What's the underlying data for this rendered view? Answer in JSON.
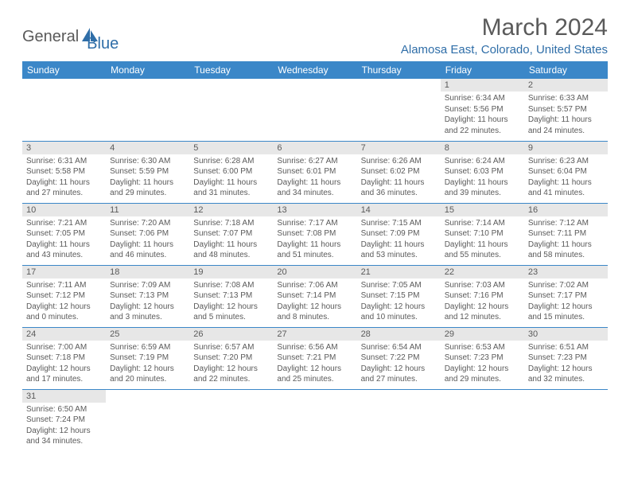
{
  "logo": {
    "text1": "General",
    "text2": "Blue"
  },
  "title": "March 2024",
  "location": "Alamosa East, Colorado, United States",
  "colors": {
    "header_bg": "#3b87c8",
    "header_text": "#ffffff",
    "daynum_bg": "#e7e7e7",
    "body_text": "#5a5a5a",
    "accent": "#2f6ea8",
    "row_border": "#3b87c8",
    "page_bg": "#ffffff"
  },
  "weekdays": [
    "Sunday",
    "Monday",
    "Tuesday",
    "Wednesday",
    "Thursday",
    "Friday",
    "Saturday"
  ],
  "weeks": [
    [
      null,
      null,
      null,
      null,
      null,
      {
        "num": "1",
        "sunrise": "Sunrise: 6:34 AM",
        "sunset": "Sunset: 5:56 PM",
        "daylight": "Daylight: 11 hours and 22 minutes."
      },
      {
        "num": "2",
        "sunrise": "Sunrise: 6:33 AM",
        "sunset": "Sunset: 5:57 PM",
        "daylight": "Daylight: 11 hours and 24 minutes."
      }
    ],
    [
      {
        "num": "3",
        "sunrise": "Sunrise: 6:31 AM",
        "sunset": "Sunset: 5:58 PM",
        "daylight": "Daylight: 11 hours and 27 minutes."
      },
      {
        "num": "4",
        "sunrise": "Sunrise: 6:30 AM",
        "sunset": "Sunset: 5:59 PM",
        "daylight": "Daylight: 11 hours and 29 minutes."
      },
      {
        "num": "5",
        "sunrise": "Sunrise: 6:28 AM",
        "sunset": "Sunset: 6:00 PM",
        "daylight": "Daylight: 11 hours and 31 minutes."
      },
      {
        "num": "6",
        "sunrise": "Sunrise: 6:27 AM",
        "sunset": "Sunset: 6:01 PM",
        "daylight": "Daylight: 11 hours and 34 minutes."
      },
      {
        "num": "7",
        "sunrise": "Sunrise: 6:26 AM",
        "sunset": "Sunset: 6:02 PM",
        "daylight": "Daylight: 11 hours and 36 minutes."
      },
      {
        "num": "8",
        "sunrise": "Sunrise: 6:24 AM",
        "sunset": "Sunset: 6:03 PM",
        "daylight": "Daylight: 11 hours and 39 minutes."
      },
      {
        "num": "9",
        "sunrise": "Sunrise: 6:23 AM",
        "sunset": "Sunset: 6:04 PM",
        "daylight": "Daylight: 11 hours and 41 minutes."
      }
    ],
    [
      {
        "num": "10",
        "sunrise": "Sunrise: 7:21 AM",
        "sunset": "Sunset: 7:05 PM",
        "daylight": "Daylight: 11 hours and 43 minutes."
      },
      {
        "num": "11",
        "sunrise": "Sunrise: 7:20 AM",
        "sunset": "Sunset: 7:06 PM",
        "daylight": "Daylight: 11 hours and 46 minutes."
      },
      {
        "num": "12",
        "sunrise": "Sunrise: 7:18 AM",
        "sunset": "Sunset: 7:07 PM",
        "daylight": "Daylight: 11 hours and 48 minutes."
      },
      {
        "num": "13",
        "sunrise": "Sunrise: 7:17 AM",
        "sunset": "Sunset: 7:08 PM",
        "daylight": "Daylight: 11 hours and 51 minutes."
      },
      {
        "num": "14",
        "sunrise": "Sunrise: 7:15 AM",
        "sunset": "Sunset: 7:09 PM",
        "daylight": "Daylight: 11 hours and 53 minutes."
      },
      {
        "num": "15",
        "sunrise": "Sunrise: 7:14 AM",
        "sunset": "Sunset: 7:10 PM",
        "daylight": "Daylight: 11 hours and 55 minutes."
      },
      {
        "num": "16",
        "sunrise": "Sunrise: 7:12 AM",
        "sunset": "Sunset: 7:11 PM",
        "daylight": "Daylight: 11 hours and 58 minutes."
      }
    ],
    [
      {
        "num": "17",
        "sunrise": "Sunrise: 7:11 AM",
        "sunset": "Sunset: 7:12 PM",
        "daylight": "Daylight: 12 hours and 0 minutes."
      },
      {
        "num": "18",
        "sunrise": "Sunrise: 7:09 AM",
        "sunset": "Sunset: 7:13 PM",
        "daylight": "Daylight: 12 hours and 3 minutes."
      },
      {
        "num": "19",
        "sunrise": "Sunrise: 7:08 AM",
        "sunset": "Sunset: 7:13 PM",
        "daylight": "Daylight: 12 hours and 5 minutes."
      },
      {
        "num": "20",
        "sunrise": "Sunrise: 7:06 AM",
        "sunset": "Sunset: 7:14 PM",
        "daylight": "Daylight: 12 hours and 8 minutes."
      },
      {
        "num": "21",
        "sunrise": "Sunrise: 7:05 AM",
        "sunset": "Sunset: 7:15 PM",
        "daylight": "Daylight: 12 hours and 10 minutes."
      },
      {
        "num": "22",
        "sunrise": "Sunrise: 7:03 AM",
        "sunset": "Sunset: 7:16 PM",
        "daylight": "Daylight: 12 hours and 12 minutes."
      },
      {
        "num": "23",
        "sunrise": "Sunrise: 7:02 AM",
        "sunset": "Sunset: 7:17 PM",
        "daylight": "Daylight: 12 hours and 15 minutes."
      }
    ],
    [
      {
        "num": "24",
        "sunrise": "Sunrise: 7:00 AM",
        "sunset": "Sunset: 7:18 PM",
        "daylight": "Daylight: 12 hours and 17 minutes."
      },
      {
        "num": "25",
        "sunrise": "Sunrise: 6:59 AM",
        "sunset": "Sunset: 7:19 PM",
        "daylight": "Daylight: 12 hours and 20 minutes."
      },
      {
        "num": "26",
        "sunrise": "Sunrise: 6:57 AM",
        "sunset": "Sunset: 7:20 PM",
        "daylight": "Daylight: 12 hours and 22 minutes."
      },
      {
        "num": "27",
        "sunrise": "Sunrise: 6:56 AM",
        "sunset": "Sunset: 7:21 PM",
        "daylight": "Daylight: 12 hours and 25 minutes."
      },
      {
        "num": "28",
        "sunrise": "Sunrise: 6:54 AM",
        "sunset": "Sunset: 7:22 PM",
        "daylight": "Daylight: 12 hours and 27 minutes."
      },
      {
        "num": "29",
        "sunrise": "Sunrise: 6:53 AM",
        "sunset": "Sunset: 7:23 PM",
        "daylight": "Daylight: 12 hours and 29 minutes."
      },
      {
        "num": "30",
        "sunrise": "Sunrise: 6:51 AM",
        "sunset": "Sunset: 7:23 PM",
        "daylight": "Daylight: 12 hours and 32 minutes."
      }
    ],
    [
      {
        "num": "31",
        "sunrise": "Sunrise: 6:50 AM",
        "sunset": "Sunset: 7:24 PM",
        "daylight": "Daylight: 12 hours and 34 minutes."
      },
      null,
      null,
      null,
      null,
      null,
      null
    ]
  ]
}
